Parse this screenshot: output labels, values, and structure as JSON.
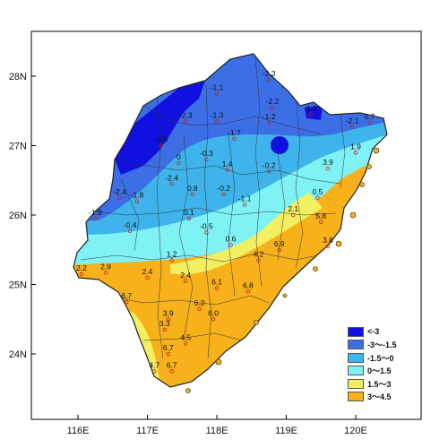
{
  "map": {
    "axes": {
      "x_ticks": [
        "116E",
        "117E",
        "118E",
        "119E",
        "120E"
      ],
      "y_ticks": [
        "28N",
        "27N",
        "26N",
        "25N",
        "24N"
      ]
    },
    "legend": [
      {
        "label": "<-3",
        "color": "#1010e0"
      },
      {
        "label": "-3～-1.5",
        "color": "#3c6ee6"
      },
      {
        "label": "-1.5～0",
        "color": "#3fb4ec"
      },
      {
        "label": "0～1.5",
        "color": "#7ff2f6"
      },
      {
        "label": "1.5～3",
        "color": "#f2f060"
      },
      {
        "label": "3～4.5",
        "color": "#f7b11a"
      }
    ],
    "station_values": [
      {
        "value": "-2.3",
        "lon": 118.75,
        "lat": 28.0
      },
      {
        "value": "-1.1",
        "lon": 118.0,
        "lat": 27.8
      },
      {
        "value": "-2.2",
        "lon": 118.8,
        "lat": 27.6
      },
      {
        "value": "-2.3",
        "lon": 117.55,
        "lat": 27.4
      },
      {
        "value": "-1.3",
        "lon": 118.0,
        "lat": 27.4
      },
      {
        "value": "-1.5",
        "lon": 119.35,
        "lat": 27.5
      },
      {
        "value": "-1.2",
        "lon": 118.75,
        "lat": 27.38
      },
      {
        "value": "-2.1",
        "lon": 119.95,
        "lat": 27.32
      },
      {
        "value": "0.7",
        "lon": 120.2,
        "lat": 27.38
      },
      {
        "value": "-1.7",
        "lon": 118.25,
        "lat": 27.15
      },
      {
        "value": "-0.9",
        "lon": 117.2,
        "lat": 27.05
      },
      {
        "value": "1.9",
        "lon": 120.0,
        "lat": 26.95
      },
      {
        "value": "0",
        "lon": 117.45,
        "lat": 26.8
      },
      {
        "value": "-0.3",
        "lon": 117.85,
        "lat": 26.85
      },
      {
        "value": "1.4",
        "lon": 118.15,
        "lat": 26.7
      },
      {
        "value": "-0.2",
        "lon": 118.75,
        "lat": 26.68
      },
      {
        "value": "3.9",
        "lon": 119.6,
        "lat": 26.72
      },
      {
        "value": "-2.4",
        "lon": 117.35,
        "lat": 26.5
      },
      {
        "value": "0.8",
        "lon": 117.65,
        "lat": 26.35
      },
      {
        "value": "-0.2",
        "lon": 118.1,
        "lat": 26.35
      },
      {
        "value": "0.5",
        "lon": 119.45,
        "lat": 26.3
      },
      {
        "value": "-2.4",
        "lon": 116.6,
        "lat": 26.3
      },
      {
        "value": "-1.8",
        "lon": 116.85,
        "lat": 26.25
      },
      {
        "value": "-1.1",
        "lon": 118.4,
        "lat": 26.2
      },
      {
        "value": "2.1",
        "lon": 119.1,
        "lat": 26.05
      },
      {
        "value": "-1.9",
        "lon": 116.25,
        "lat": 26.0
      },
      {
        "value": "0.1",
        "lon": 117.6,
        "lat": 26.0
      },
      {
        "value": "5.8",
        "lon": 119.5,
        "lat": 25.95
      },
      {
        "value": "-0.4",
        "lon": 116.75,
        "lat": 25.82
      },
      {
        "value": "-0.5",
        "lon": 117.85,
        "lat": 25.8
      },
      {
        "value": "0.6",
        "lon": 118.2,
        "lat": 25.62
      },
      {
        "value": "3.8",
        "lon": 119.6,
        "lat": 25.6
      },
      {
        "value": "6.9",
        "lon": 118.9,
        "lat": 25.55
      },
      {
        "value": "1.2",
        "lon": 117.35,
        "lat": 25.4
      },
      {
        "value": "4.2",
        "lon": 118.6,
        "lat": 25.4
      },
      {
        "value": "2.2",
        "lon": 116.05,
        "lat": 25.2
      },
      {
        "value": "2.9",
        "lon": 116.4,
        "lat": 25.22
      },
      {
        "value": "2.4",
        "lon": 117.0,
        "lat": 25.15
      },
      {
        "value": "2.4",
        "lon": 117.55,
        "lat": 25.1
      },
      {
        "value": "6.1",
        "lon": 118.0,
        "lat": 25.0
      },
      {
        "value": "6.8",
        "lon": 118.45,
        "lat": 24.95
      },
      {
        "value": "6.7",
        "lon": 116.7,
        "lat": 24.8
      },
      {
        "value": "6.2",
        "lon": 117.75,
        "lat": 24.7
      },
      {
        "value": "6.0",
        "lon": 117.95,
        "lat": 24.55
      },
      {
        "value": "3.9",
        "lon": 117.3,
        "lat": 24.55
      },
      {
        "value": "3.3",
        "lon": 117.25,
        "lat": 24.4
      },
      {
        "value": "4.5",
        "lon": 117.55,
        "lat": 24.2
      },
      {
        "value": "6.7",
        "lon": 117.3,
        "lat": 24.05
      },
      {
        "value": "4.7",
        "lon": 117.1,
        "lat": 23.8
      },
      {
        "value": "6.7",
        "lon": 117.35,
        "lat": 23.8
      }
    ]
  }
}
